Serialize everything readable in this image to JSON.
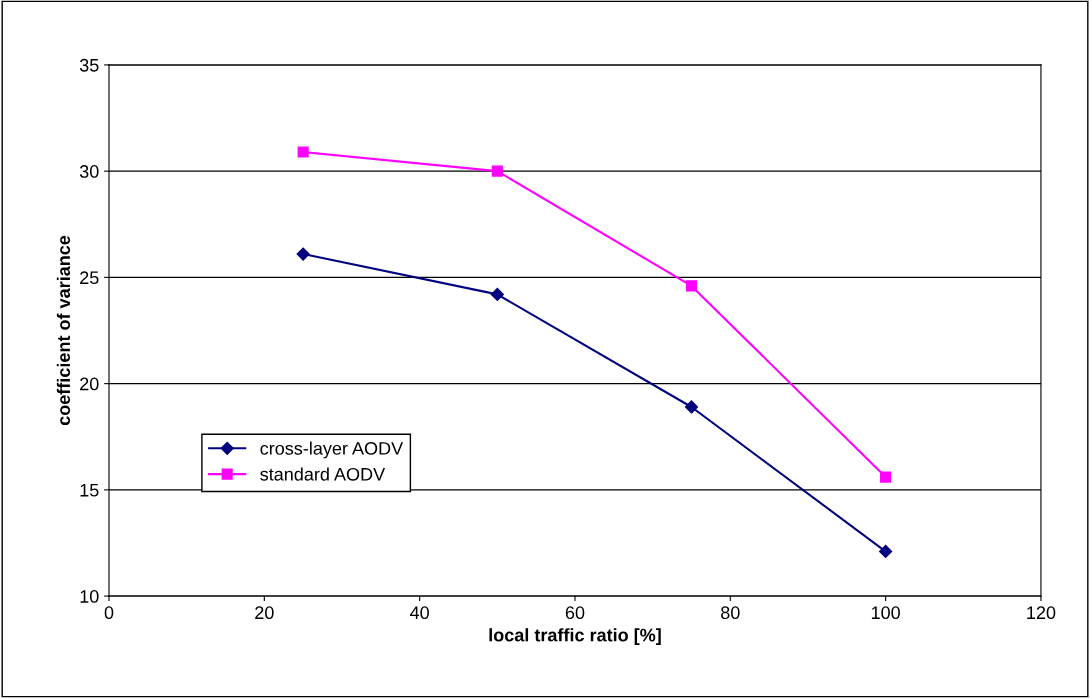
{
  "chart_data": {
    "type": "line",
    "xlabel": "local traffic ratio [%]",
    "ylabel": "coefficient of variance",
    "x": [
      25,
      50,
      75,
      100
    ],
    "series": [
      {
        "name": "cross-layer AODV",
        "color": "#000080",
        "marker": "diamond",
        "values": [
          26.1,
          24.2,
          18.9,
          12.1
        ]
      },
      {
        "name": "standard AODV",
        "color": "#ff00ff",
        "marker": "square",
        "values": [
          30.9,
          30.0,
          24.6,
          15.6
        ]
      }
    ],
    "xlim": [
      0,
      120
    ],
    "xticks": [
      0,
      20,
      40,
      60,
      80,
      100,
      120
    ],
    "ylim": [
      10,
      35
    ],
    "yticks": [
      10,
      15,
      20,
      25,
      30,
      35
    ],
    "grid": "y",
    "legend": "lower left",
    "line_style": "solid"
  }
}
